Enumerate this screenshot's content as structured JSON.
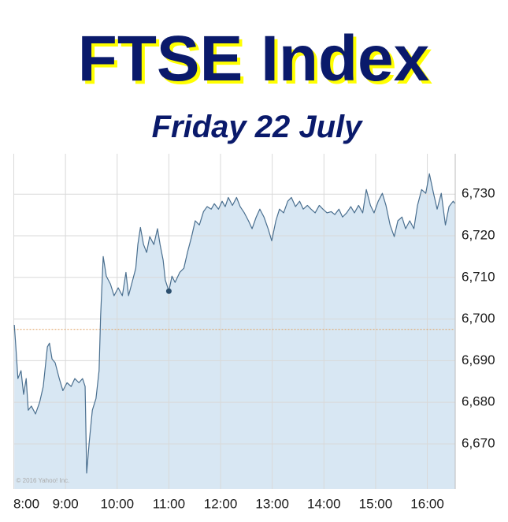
{
  "chart_data": {
    "type": "area",
    "title": "FTSE Index",
    "subtitle": "Friday 22 July",
    "watermark": "© 2016 Yahoo! Inc.",
    "line_color": "#4a6f8f",
    "fill_color": "#d8e7f3",
    "grid": true,
    "reference_line": 6697.5,
    "reference_color": "#e0a060",
    "marker": {
      "x": 11.0,
      "y": 6706.7
    },
    "xlim": [
      8,
      16.54
    ],
    "ylim": [
      6659.2,
      6739.7
    ],
    "xticks": [
      {
        "value": 8,
        "label": "8:00"
      },
      {
        "value": 9,
        "label": "9:00"
      },
      {
        "value": 10,
        "label": "10:00"
      },
      {
        "value": 11,
        "label": "11:00"
      },
      {
        "value": 12,
        "label": "12:00"
      },
      {
        "value": 13,
        "label": "13:00"
      },
      {
        "value": 14,
        "label": "14:00"
      },
      {
        "value": 15,
        "label": "15:00"
      },
      {
        "value": 16,
        "label": "16:00"
      }
    ],
    "yticks": [
      {
        "value": 6670,
        "label": "6,670"
      },
      {
        "value": 6680,
        "label": "6,680"
      },
      {
        "value": 6690,
        "label": "6,690"
      },
      {
        "value": 6700,
        "label": "6,700"
      },
      {
        "value": 6710,
        "label": "6,710"
      },
      {
        "value": 6720,
        "label": "6,720"
      },
      {
        "value": 6730,
        "label": "6,730"
      }
    ],
    "x": [
      8.01,
      8.04,
      8.08,
      8.14,
      8.19,
      8.24,
      8.28,
      8.34,
      8.42,
      8.5,
      8.57,
      8.65,
      8.69,
      8.74,
      8.8,
      8.88,
      8.95,
      9.03,
      9.11,
      9.18,
      9.26,
      9.33,
      9.38,
      9.41,
      9.46,
      9.52,
      9.59,
      9.65,
      9.68,
      9.73,
      9.79,
      9.87,
      9.94,
      10.02,
      10.1,
      10.17,
      10.22,
      10.28,
      10.36,
      10.4,
      10.45,
      10.51,
      10.57,
      10.63,
      10.71,
      10.78,
      10.83,
      10.89,
      10.93,
      11.0,
      11.06,
      11.12,
      11.21,
      11.29,
      11.36,
      11.44,
      11.51,
      11.59,
      11.67,
      11.74,
      11.82,
      11.88,
      11.96,
      12.03,
      12.09,
      12.15,
      12.23,
      12.31,
      12.38,
      12.46,
      12.54,
      12.61,
      12.69,
      12.76,
      12.84,
      12.92,
      12.99,
      13.07,
      13.14,
      13.22,
      13.3,
      13.37,
      13.45,
      13.53,
      13.6,
      13.68,
      13.75,
      13.83,
      13.91,
      13.98,
      14.06,
      14.14,
      14.21,
      14.29,
      14.36,
      14.44,
      14.52,
      14.59,
      14.67,
      14.75,
      14.82,
      14.9,
      14.97,
      15.05,
      15.13,
      15.2,
      15.28,
      15.36,
      15.43,
      15.51,
      15.58,
      15.66,
      15.74,
      15.81,
      15.89,
      15.97,
      16.04,
      16.12,
      16.19,
      16.27,
      16.35,
      16.42,
      16.5,
      16.54
    ],
    "values": [
      6698.6,
      6693.3,
      6685.7,
      6687.6,
      6681.9,
      6685.7,
      6678.1,
      6679.1,
      6677.2,
      6680.0,
      6683.8,
      6693.3,
      6694.2,
      6690.4,
      6689.5,
      6685.7,
      6682.8,
      6684.7,
      6683.8,
      6685.7,
      6684.7,
      6685.7,
      6683.8,
      6663.0,
      6670.5,
      6678.1,
      6680.9,
      6687.6,
      6700.8,
      6715.0,
      6710.3,
      6708.4,
      6705.6,
      6707.5,
      6705.6,
      6711.2,
      6705.6,
      6708.4,
      6712.2,
      6717.9,
      6722.0,
      6717.9,
      6716.0,
      6719.8,
      6717.9,
      6721.7,
      6717.9,
      6714.1,
      6709.4,
      6706.7,
      6710.3,
      6708.8,
      6711.2,
      6712.2,
      6716.0,
      6719.8,
      6723.6,
      6722.6,
      6725.8,
      6727.0,
      6726.4,
      6727.7,
      6726.4,
      6728.3,
      6727.0,
      6729.2,
      6727.3,
      6729.2,
      6727.0,
      6725.5,
      6723.6,
      6721.7,
      6724.5,
      6726.4,
      6724.5,
      6721.7,
      6718.8,
      6723.6,
      6726.4,
      6725.5,
      6728.3,
      6729.2,
      6727.0,
      6728.3,
      6726.4,
      6727.3,
      6726.4,
      6725.5,
      6727.3,
      6726.4,
      6725.5,
      6725.8,
      6725.1,
      6726.4,
      6724.5,
      6725.5,
      6727.0,
      6725.5,
      6727.3,
      6725.5,
      6731.1,
      6727.3,
      6725.5,
      6728.3,
      6730.2,
      6727.3,
      6722.6,
      6719.8,
      6723.6,
      6724.5,
      6721.7,
      6723.6,
      6721.7,
      6727.3,
      6731.1,
      6730.2,
      6734.9,
      6730.2,
      6726.4,
      6730.2,
      6722.6,
      6727.0,
      6728.3,
      6727.7
    ]
  }
}
